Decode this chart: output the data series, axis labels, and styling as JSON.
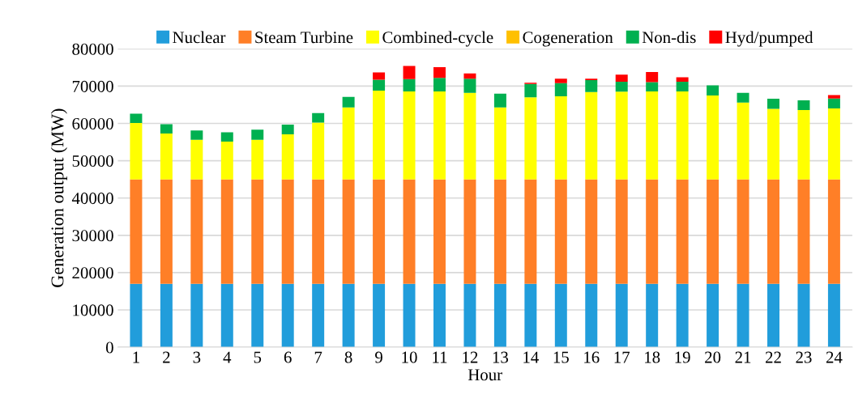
{
  "chart_data": {
    "type": "bar",
    "stacked": true,
    "xlabel": "Hour",
    "ylabel": "Generation output (MW)",
    "categories": [
      "1",
      "2",
      "3",
      "4",
      "5",
      "6",
      "7",
      "8",
      "9",
      "10",
      "11",
      "12",
      "13",
      "14",
      "15",
      "16",
      "17",
      "18",
      "19",
      "20",
      "21",
      "22",
      "23",
      "24"
    ],
    "series": [
      {
        "name": "Nuclear",
        "color": "#219ddb",
        "values": [
          17000,
          17000,
          17000,
          17000,
          17000,
          17000,
          17000,
          17000,
          17000,
          17000,
          17000,
          17000,
          17000,
          17000,
          17000,
          17000,
          17000,
          17000,
          17000,
          17000,
          17000,
          17000,
          17000,
          17000
        ]
      },
      {
        "name": "Steam Turbine",
        "color": "#ff7f27",
        "values": [
          28000,
          28000,
          28000,
          28000,
          28000,
          28000,
          28000,
          28000,
          28000,
          28000,
          28000,
          28000,
          28000,
          28000,
          28000,
          28000,
          28000,
          28000,
          28000,
          28000,
          28000,
          28000,
          28000,
          28000
        ]
      },
      {
        "name": "Combined-cycle",
        "color": "#ffff00",
        "values": [
          15100,
          12300,
          10600,
          10100,
          10600,
          12100,
          15200,
          19300,
          23800,
          23600,
          23600,
          23200,
          19300,
          22000,
          22300,
          23400,
          23500,
          23600,
          23600,
          22500,
          20600,
          18900,
          18600,
          19000
        ]
      },
      {
        "name": "Cogeneration",
        "color": "#ffc000",
        "values": [
          0,
          0,
          0,
          0,
          0,
          0,
          0,
          0,
          0,
          0,
          0,
          0,
          0,
          0,
          0,
          0,
          0,
          0,
          0,
          0,
          0,
          0,
          0,
          0
        ]
      },
      {
        "name": "Non-dis",
        "color": "#00b050",
        "values": [
          2500,
          2500,
          2500,
          2500,
          2700,
          2600,
          2600,
          2800,
          2900,
          3300,
          3600,
          3800,
          3700,
          3600,
          3500,
          3200,
          2700,
          2500,
          2600,
          2700,
          2600,
          2700,
          2600,
          2700
        ]
      },
      {
        "name": "Hyd/pumped",
        "color": "#ff0000",
        "values": [
          0,
          0,
          0,
          0,
          0,
          0,
          0,
          0,
          2000,
          3500,
          2900,
          1400,
          0,
          300,
          1200,
          400,
          1900,
          2700,
          1200,
          0,
          0,
          0,
          0,
          900
        ]
      }
    ],
    "ylim": [
      0,
      80000
    ],
    "yticks": [
      0,
      10000,
      20000,
      30000,
      40000,
      50000,
      60000,
      70000,
      80000
    ],
    "grid": "y",
    "legend": "top"
  }
}
